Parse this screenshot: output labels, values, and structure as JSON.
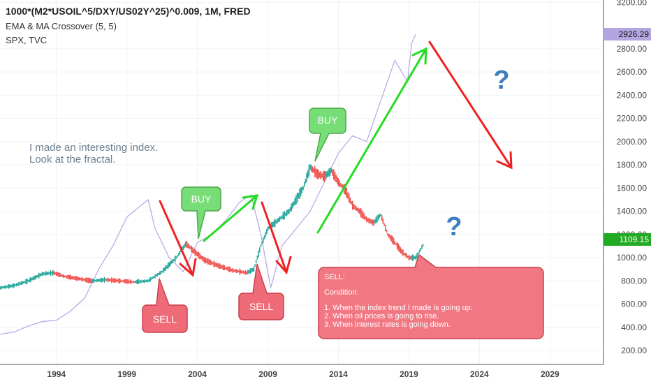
{
  "header": {
    "main": "1000*(M2*USOIL^5/DXY/US02Y^25)^0.009, 1M, FRED",
    "line2": "EMA & MA Crossover (5, 5)",
    "line3": "SPX, TVC"
  },
  "note": {
    "line1": "I made an interesting index.",
    "line2": "Look at the fractal."
  },
  "labels": {
    "buy1": "BUY",
    "buy2": "BUY",
    "sell1": "SELL",
    "sell2": "SELL",
    "q1": "?",
    "q2": "?"
  },
  "condition": {
    "title": "SELL:",
    "subtitle": "Condition:",
    "items": [
      "1. When the index trend I made is going up.",
      "2. When oil prices is going to rise.",
      "3. When interest rates is going down."
    ]
  },
  "price_tags": {
    "spx": "2926.29",
    "index": "1109.15"
  },
  "colors": {
    "up": "#26a69a",
    "down": "#ef5350",
    "spx_line": "#b3a6e0",
    "green_arrow": "#22dd22",
    "red_arrow": "#ee2222",
    "buy_fill": "#77dd77",
    "sell_fill": "#f06b78",
    "question": "#3f7fbf"
  },
  "chart_data": {
    "type": "line",
    "x_ticks": [
      "1994",
      "1999",
      "2004",
      "2009",
      "2014",
      "2019",
      "2024",
      "2029"
    ],
    "y_ticks": [
      "200.00",
      "400.00",
      "600.00",
      "800.00",
      "1000.00",
      "1200.00",
      "1400.00",
      "1600.00",
      "1800.00",
      "2000.00",
      "2200.00",
      "2400.00",
      "2600.00",
      "2800.00",
      "3200.00"
    ],
    "ylim": [
      80,
      3220
    ],
    "xlim": [
      1990.0,
      2032.8
    ],
    "series": [
      {
        "name": "1000*(M2*USOIL^5/DXY/US02Y^25)^0.009",
        "points": [
          [
            1990.0,
            740
          ],
          [
            1991.0,
            760
          ],
          [
            1992.0,
            800
          ],
          [
            1993.0,
            860
          ],
          [
            1993.8,
            870
          ],
          [
            1994.5,
            840
          ],
          [
            1995.5,
            820
          ],
          [
            1996.5,
            800
          ],
          [
            1997.5,
            810
          ],
          [
            1998.5,
            800
          ],
          [
            1999.5,
            790
          ],
          [
            2000.5,
            800
          ],
          [
            2001.5,
            880
          ],
          [
            2002.5,
            1000
          ],
          [
            2003.2,
            1120
          ],
          [
            2003.8,
            1050
          ],
          [
            2004.5,
            980
          ],
          [
            2005.5,
            930
          ],
          [
            2006.5,
            890
          ],
          [
            2007.5,
            870
          ],
          [
            2008.0,
            900
          ],
          [
            2008.5,
            1100
          ],
          [
            2009.0,
            1250
          ],
          [
            2009.5,
            1300
          ],
          [
            2010.0,
            1350
          ],
          [
            2010.5,
            1400
          ],
          [
            2011.0,
            1500
          ],
          [
            2011.5,
            1600
          ],
          [
            2012.0,
            1780
          ],
          [
            2012.5,
            1720
          ],
          [
            2013.0,
            1700
          ],
          [
            2013.5,
            1750
          ],
          [
            2014.0,
            1650
          ],
          [
            2014.5,
            1580
          ],
          [
            2015.0,
            1450
          ],
          [
            2015.5,
            1400
          ],
          [
            2016.0,
            1330
          ],
          [
            2016.5,
            1300
          ],
          [
            2017.0,
            1370
          ],
          [
            2017.5,
            1200
          ],
          [
            2018.0,
            1130
          ],
          [
            2018.5,
            1050
          ],
          [
            2019.0,
            1000
          ],
          [
            2019.5,
            1000
          ],
          [
            2020.0,
            1109
          ]
        ]
      },
      {
        "name": "SPX",
        "points": [
          [
            1990.0,
            340
          ],
          [
            1991.0,
            360
          ],
          [
            1992.0,
            410
          ],
          [
            1993.0,
            450
          ],
          [
            1994.0,
            460
          ],
          [
            1995.0,
            540
          ],
          [
            1996.0,
            650
          ],
          [
            1997.0,
            900
          ],
          [
            1998.0,
            1100
          ],
          [
            1999.0,
            1350
          ],
          [
            2000.0,
            1450
          ],
          [
            2000.5,
            1500
          ],
          [
            2001.0,
            1250
          ],
          [
            2002.0,
            1000
          ],
          [
            2003.0,
            880
          ],
          [
            2004.0,
            1130
          ],
          [
            2005.0,
            1200
          ],
          [
            2006.0,
            1320
          ],
          [
            2007.0,
            1480
          ],
          [
            2007.8,
            1540
          ],
          [
            2008.5,
            1200
          ],
          [
            2009.2,
            740
          ],
          [
            2010.0,
            1100
          ],
          [
            2011.0,
            1250
          ],
          [
            2012.0,
            1400
          ],
          [
            2013.0,
            1650
          ],
          [
            2014.0,
            1900
          ],
          [
            2015.0,
            2050
          ],
          [
            2016.0,
            2000
          ],
          [
            2017.0,
            2350
          ],
          [
            2018.0,
            2700
          ],
          [
            2018.9,
            2520
          ],
          [
            2019.2,
            2850
          ],
          [
            2019.5,
            2926
          ]
        ]
      }
    ],
    "annotations": [
      "BUY",
      "BUY",
      "SELL",
      "SELL",
      "?",
      "?"
    ]
  }
}
